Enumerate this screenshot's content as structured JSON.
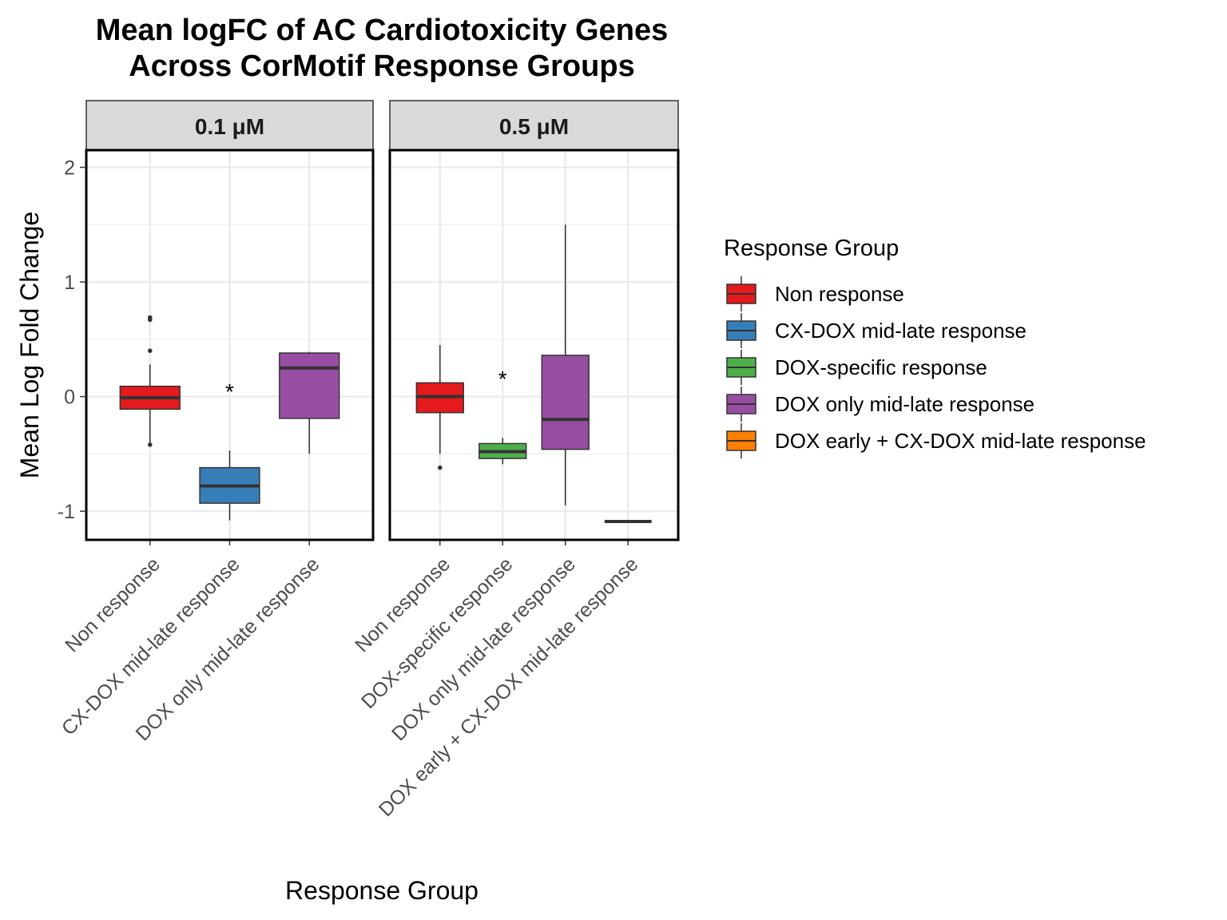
{
  "chart_data": {
    "type": "box",
    "title": [
      "Mean logFC of AC Cardiotoxicity Genes",
      "Across CorMotif Response Groups"
    ],
    "xlabel": "Response Group",
    "ylabel": "Mean Log Fold Change",
    "ylim": [
      -1.25,
      2.15
    ],
    "yticks": [
      -1,
      0,
      1,
      2
    ],
    "grid": true,
    "legend": {
      "title": "Response Group",
      "position": "right",
      "entries": [
        {
          "label": "Non response",
          "color": "#E41A1C"
        },
        {
          "label": "CX-DOX mid-late response",
          "color": "#377EB8"
        },
        {
          "label": "DOX-specific response",
          "color": "#4DAF4A"
        },
        {
          "label": "DOX only mid-late response",
          "color": "#984EA3"
        },
        {
          "label": "DOX early + CX-DOX mid-late response",
          "color": "#FF7F00"
        }
      ]
    },
    "facets": [
      {
        "label": "0.1 μM",
        "groups": [
          {
            "name": "Non response",
            "color": "#E41A1C",
            "min": -0.42,
            "q1": -0.11,
            "median": -0.01,
            "q3": 0.09,
            "max": 0.28,
            "outliers": [
              0.4,
              0.67,
              0.69,
              -0.42
            ],
            "sig": ""
          },
          {
            "name": "CX-DOX mid-late response",
            "color": "#377EB8",
            "min": -1.08,
            "q1": -0.93,
            "median": -0.78,
            "q3": -0.62,
            "max": -0.47,
            "outliers": [],
            "sig": "*"
          },
          {
            "name": "DOX only mid-late response",
            "color": "#984EA3",
            "min": -0.5,
            "q1": -0.19,
            "median": 0.25,
            "q3": 0.38,
            "max": 0.39,
            "outliers": [],
            "sig": ""
          }
        ]
      },
      {
        "label": "0.5 μM",
        "groups": [
          {
            "name": "Non response",
            "color": "#E41A1C",
            "min": -0.5,
            "q1": -0.14,
            "median": 0.0,
            "q3": 0.12,
            "max": 0.45,
            "outliers": [
              -0.62
            ],
            "sig": ""
          },
          {
            "name": "DOX-specific response",
            "color": "#4DAF4A",
            "min": -0.59,
            "q1": -0.54,
            "median": -0.48,
            "q3": -0.41,
            "max": -0.36,
            "outliers": [],
            "sig": "*"
          },
          {
            "name": "DOX only mid-late response",
            "color": "#984EA3",
            "min": -0.95,
            "q1": -0.46,
            "median": -0.2,
            "q3": 0.36,
            "max": 1.5,
            "outliers": [],
            "sig": ""
          },
          {
            "name": "DOX early + CX-DOX mid-late response",
            "color": "#FF7F00",
            "min": -1.09,
            "q1": -1.09,
            "median": -1.09,
            "q3": -1.09,
            "max": -1.09,
            "outliers": [],
            "sig": ""
          }
        ]
      }
    ]
  }
}
